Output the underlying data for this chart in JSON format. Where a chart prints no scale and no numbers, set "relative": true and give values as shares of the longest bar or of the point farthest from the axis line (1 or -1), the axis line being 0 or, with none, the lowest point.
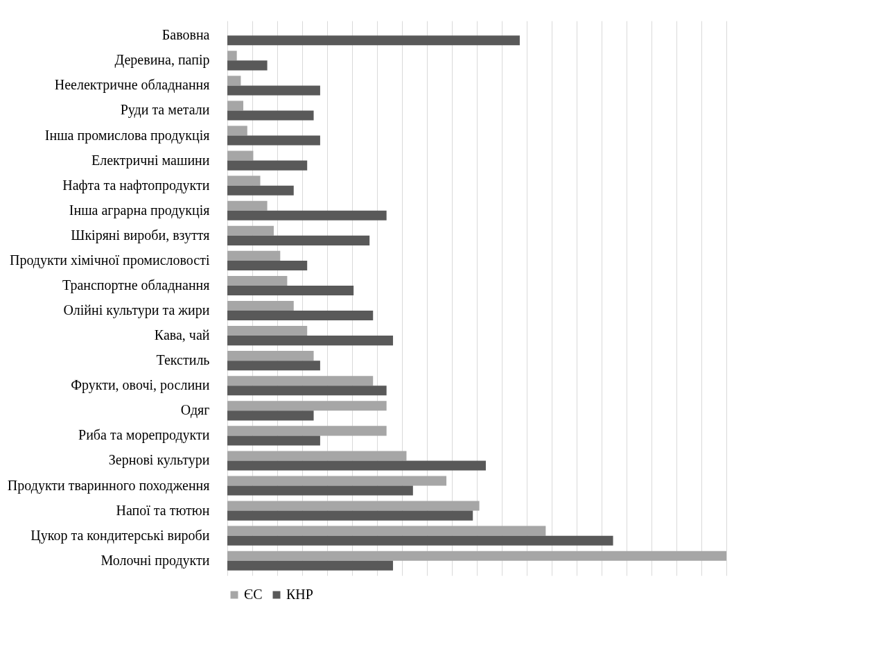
{
  "chart_data": {
    "type": "bar",
    "orientation": "horizontal",
    "relative": true,
    "grid": "x",
    "legend": "bottom",
    "categories": [
      "Бавовна",
      "Деревина, папір",
      "Неелектричне обладнання",
      "Руди та метали",
      "Інша промислова продукція",
      "Електричні машини",
      "Нафта та нафтопродукти",
      "Інша аграрна продукція",
      "Шкіряні вироби, взуття",
      "Продукти хімічної промисловості",
      "Транспортне обладнання",
      "Олійні культури та жири",
      "Кава, чай",
      "Текстиль",
      "Фрукти, овочі, рослини",
      "Одяг",
      "Риба та морепродукти",
      "Зернові культури",
      "Продукти тваринного походження",
      "Напої та тютюн",
      "Цукор та кондитерські вироби",
      "Молочні продукти"
    ],
    "series": [
      {
        "name": "ЄС",
        "color": "#a6a6a6",
        "values": [
          null,
          0.019,
          0.027,
          0.032,
          0.04,
          0.052,
          0.066,
          0.08,
          0.093,
          0.106,
          0.12,
          0.133,
          0.16,
          0.173,
          0.292,
          0.319,
          0.319,
          0.359,
          0.439,
          0.505,
          0.638,
          1
        ]
      },
      {
        "name": "КНР",
        "color": "#595959",
        "values": [
          0.586,
          0.08,
          0.186,
          0.173,
          0.186,
          0.16,
          0.133,
          0.319,
          0.285,
          0.16,
          0.253,
          0.292,
          0.332,
          0.186,
          0.319,
          0.173,
          0.186,
          0.518,
          0.372,
          0.492,
          0.773,
          0.332
        ]
      }
    ]
  }
}
